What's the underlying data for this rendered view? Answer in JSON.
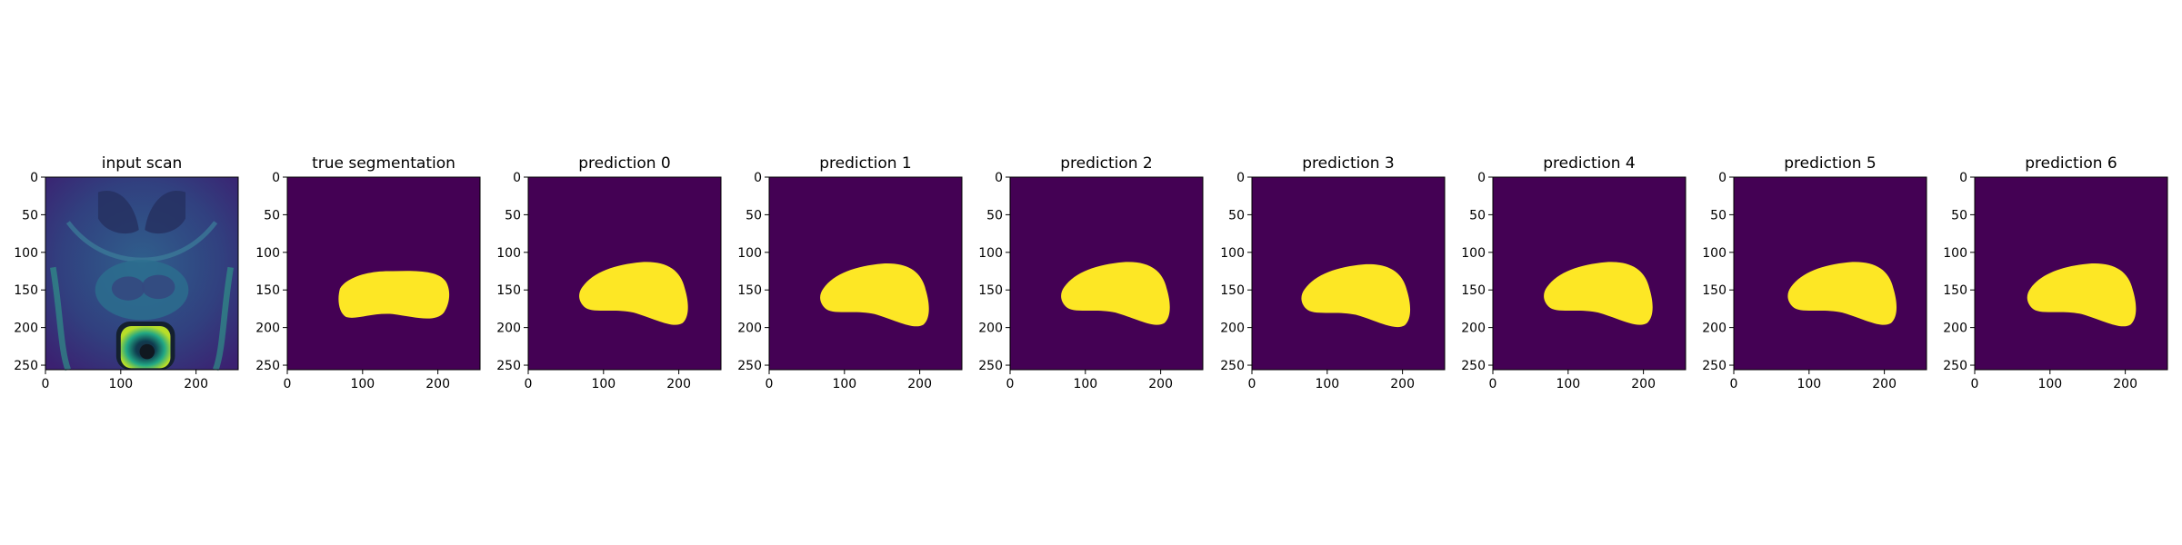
{
  "figure": {
    "colormap": {
      "background": "#440154",
      "foreground": "#fde725"
    },
    "axis": {
      "xticks": [
        "0",
        "100",
        "200"
      ],
      "yticks": [
        "0",
        "50",
        "100",
        "150",
        "200",
        "250"
      ]
    },
    "panels": [
      {
        "title": "input scan"
      },
      {
        "title": "true segmentation"
      },
      {
        "title": "prediction 0"
      },
      {
        "title": "prediction 1"
      },
      {
        "title": "prediction 2"
      },
      {
        "title": "prediction 3"
      },
      {
        "title": "prediction 4"
      },
      {
        "title": "prediction 5"
      },
      {
        "title": "prediction 6"
      }
    ]
  }
}
